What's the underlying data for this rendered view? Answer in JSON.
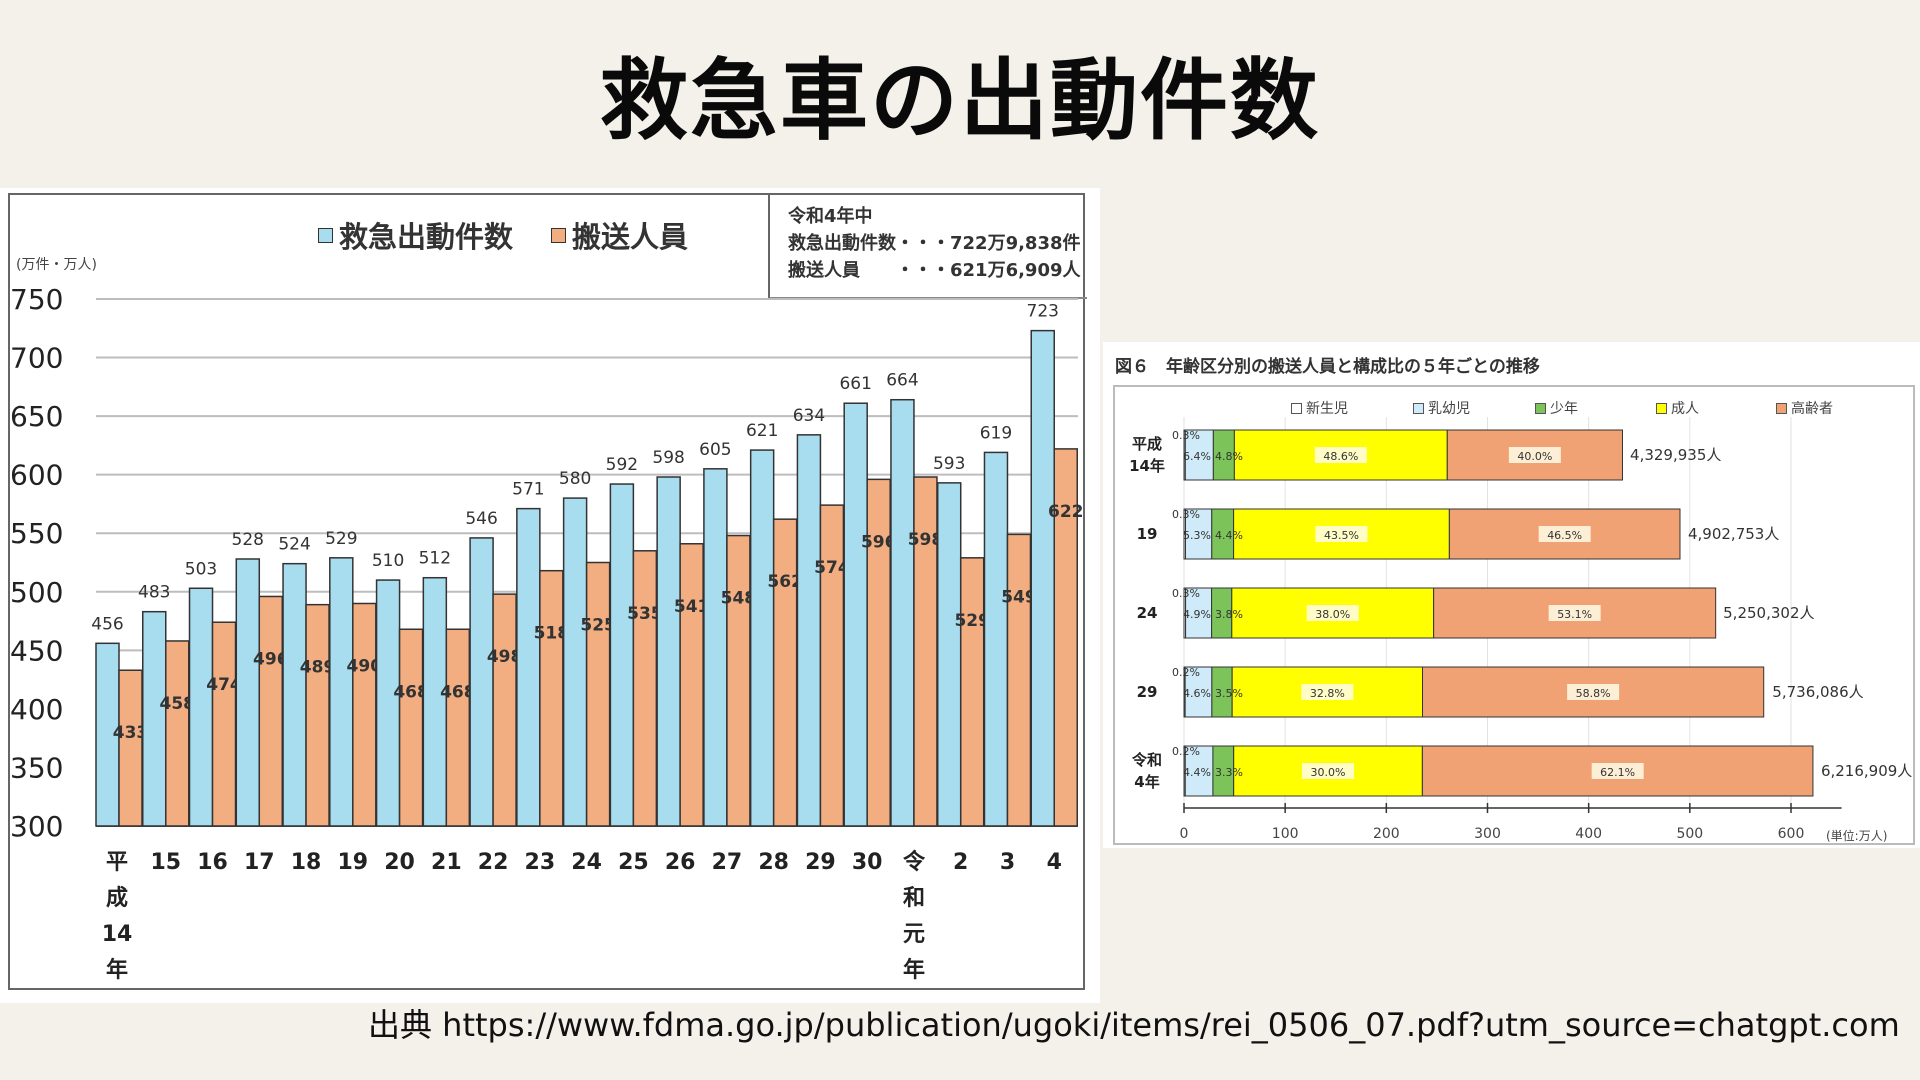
{
  "page": {
    "title": "救急車の出動件数",
    "source": "出典 https://www.fdma.go.jp/publication/ugoki/items/rei_0506_07.pdf?utm_source=chatgpt.com"
  },
  "colors": {
    "dispatch": "#a8ddf0",
    "transport": "#f2ad80",
    "newborn": "#ffffff",
    "infant": "#cfeaf8",
    "youth": "#7cc45a",
    "adult": "#ffff00",
    "elderly": "#f0a274"
  },
  "summary": {
    "line1": "令和4年中",
    "line2": "救急出動件数・・・722万9,838件",
    "line3": "搬送人員　　・・・621万6,909人"
  },
  "chart_data": [
    {
      "type": "bar",
      "title": "",
      "ylabel": "(万件・万人)",
      "xlabel": "",
      "ylim": [
        300,
        750
      ],
      "yticks": [
        300,
        350,
        400,
        450,
        500,
        550,
        600,
        650,
        700,
        750
      ],
      "grid": true,
      "legend_position": "top-center",
      "categories": [
        "平成14年",
        "15",
        "16",
        "17",
        "18",
        "19",
        "20",
        "21",
        "22",
        "23",
        "24",
        "25",
        "26",
        "27",
        "28",
        "29",
        "30",
        "令和元年",
        "2",
        "3",
        "4"
      ],
      "category_labels": [
        [
          "平",
          "成",
          "14",
          "年"
        ],
        [
          "15"
        ],
        [
          "16"
        ],
        [
          "17"
        ],
        [
          "18"
        ],
        [
          "19"
        ],
        [
          "20"
        ],
        [
          "21"
        ],
        [
          "22"
        ],
        [
          "23"
        ],
        [
          "24"
        ],
        [
          "25"
        ],
        [
          "26"
        ],
        [
          "27"
        ],
        [
          "28"
        ],
        [
          "29"
        ],
        [
          "30"
        ],
        [
          "令",
          "和",
          "元",
          "年"
        ],
        [
          "2"
        ],
        [
          "3"
        ],
        [
          "4"
        ]
      ],
      "series": [
        {
          "name": "救急出動件数",
          "color_key": "dispatch",
          "values": [
            456,
            483,
            503,
            528,
            524,
            529,
            510,
            512,
            546,
            571,
            580,
            592,
            598,
            605,
            621,
            634,
            661,
            664,
            593,
            619,
            723
          ]
        },
        {
          "name": "搬送人員",
          "color_key": "transport",
          "values": [
            433,
            458,
            474,
            496,
            489,
            490,
            468,
            468,
            498,
            518,
            525,
            535,
            541,
            548,
            562,
            574,
            596,
            598,
            529,
            549,
            622
          ]
        }
      ]
    },
    {
      "type": "bar",
      "orientation": "horizontal-stacked",
      "title": "図６　年齢区分別の搬送人員と構成比の５年ごとの推移",
      "xlabel": "(単位:万人)",
      "xlim": [
        0,
        650
      ],
      "xticks": [
        0,
        100,
        200,
        300,
        400,
        500,
        600
      ],
      "grid": true,
      "legend_position": "top",
      "categories": [
        {
          "label": [
            "平成",
            "14年"
          ],
          "total_label": "4,329,935人",
          "total": 4329935
        },
        {
          "label": [
            "19"
          ],
          "total_label": "4,902,753人",
          "total": 4902753
        },
        {
          "label": [
            "24"
          ],
          "total_label": "5,250,302人",
          "total": 5250302
        },
        {
          "label": [
            "29"
          ],
          "total_label": "5,736,086人",
          "total": 5736086
        },
        {
          "label": [
            "令和",
            "4年"
          ],
          "total_label": "6,216,909人",
          "total": 6216909
        }
      ],
      "series": [
        {
          "name": "新生児",
          "color_key": "newborn",
          "values": [
            0.3,
            0.3,
            0.3,
            0.2,
            0.2
          ]
        },
        {
          "name": "乳幼児",
          "color_key": "infant",
          "values": [
            6.4,
            5.3,
            4.9,
            4.6,
            4.4
          ]
        },
        {
          "name": "少年",
          "color_key": "youth",
          "values": [
            4.8,
            4.4,
            3.8,
            3.5,
            3.3
          ]
        },
        {
          "name": "成人",
          "color_key": "adult",
          "values": [
            48.6,
            43.5,
            38.0,
            32.8,
            30.0
          ]
        },
        {
          "name": "高齢者",
          "color_key": "elderly",
          "values": [
            40.0,
            46.5,
            53.1,
            58.8,
            62.1
          ]
        }
      ],
      "value_unit": "%"
    }
  ]
}
